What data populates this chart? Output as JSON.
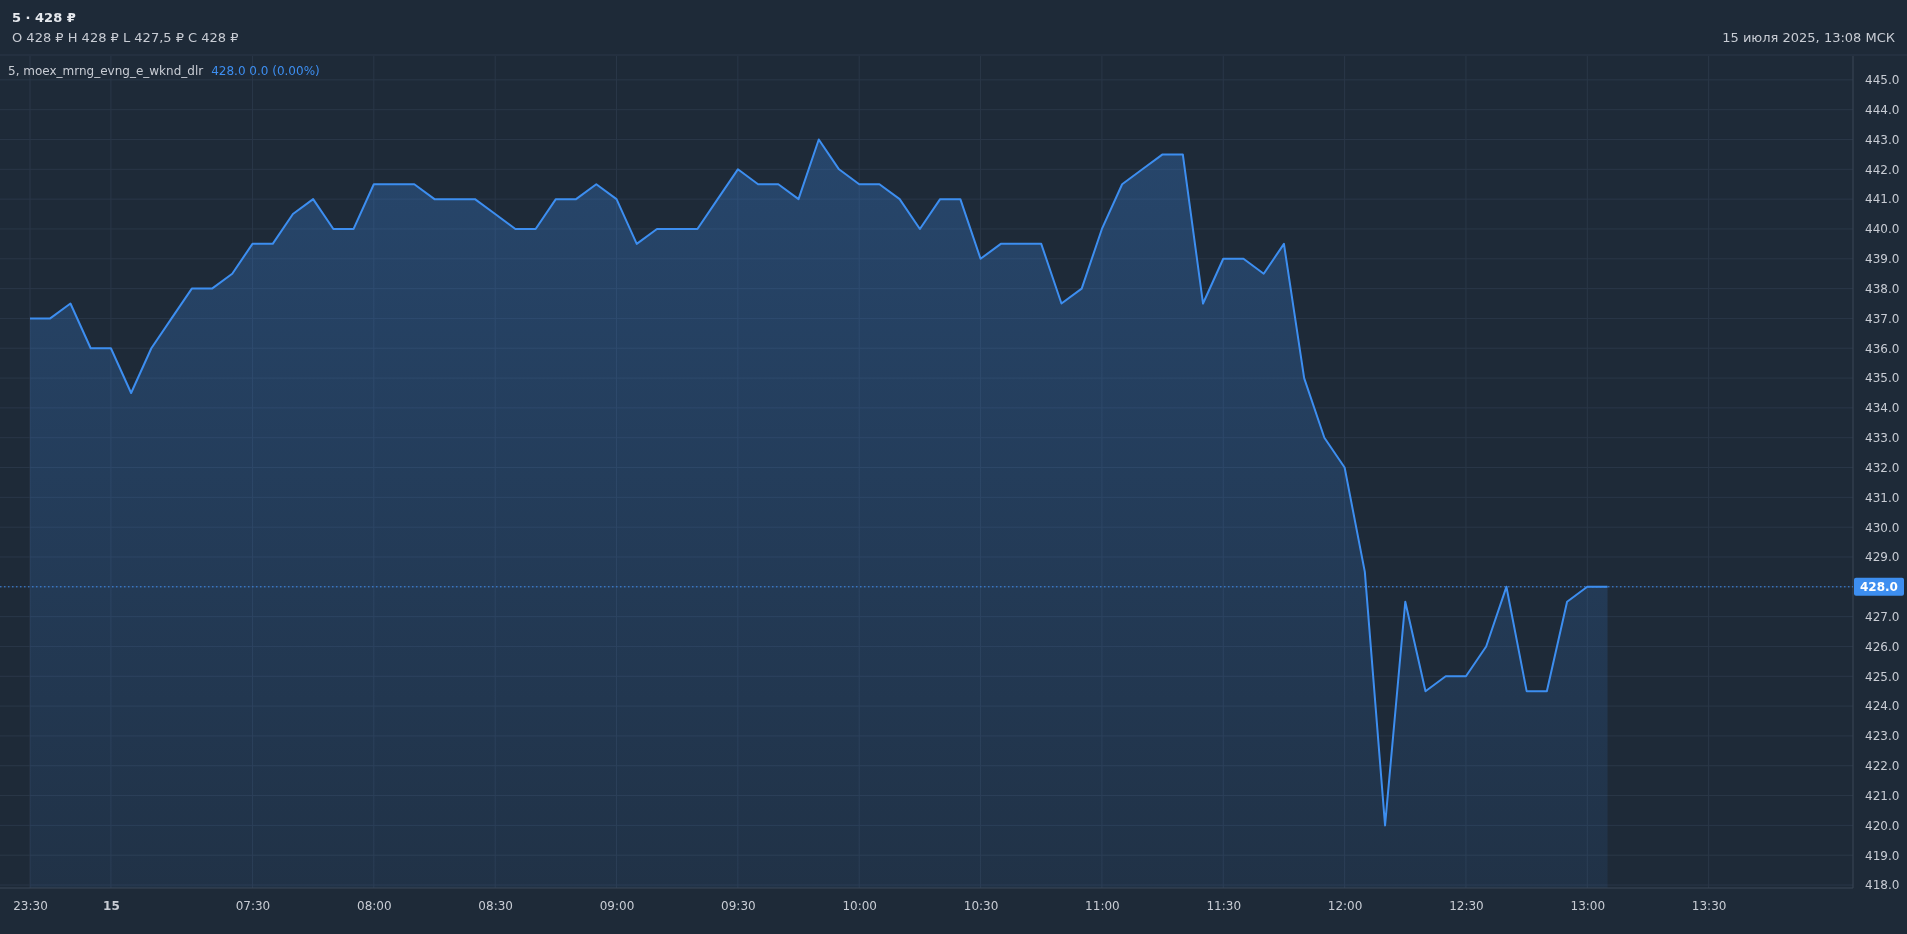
{
  "chart_data": {
    "type": "area",
    "title": "5 · 428 ₽",
    "subtitle": "O 428 ₽   H 428 ₽   L 427,5 ₽   C 428 ₽",
    "annotations": [
      "5, moex_mrng_evng_e_wknd_dlr",
      "428.0  0.0 (0.00%)",
      "15 июля 2025, 13:08 МСК"
    ],
    "categories": [
      "23:30",
      null,
      null,
      null,
      "15",
      null,
      null,
      null,
      null,
      null,
      null,
      "07:30",
      null,
      null,
      null,
      null,
      null,
      "08:00",
      null,
      null,
      null,
      null,
      null,
      "08:30",
      null,
      null,
      null,
      null,
      null,
      "09:00",
      null,
      null,
      null,
      null,
      null,
      "09:30",
      null,
      null,
      null,
      null,
      null,
      "10:00",
      null,
      null,
      null,
      null,
      null,
      "10:30",
      null,
      null,
      null,
      null,
      null,
      "11:00",
      null,
      null,
      null,
      null,
      null,
      "11:30",
      null,
      null,
      null,
      null,
      null,
      "12:00",
      null,
      null,
      null,
      null,
      null,
      "12:30",
      null,
      null,
      null,
      null,
      null,
      "13:00",
      null,
      null,
      null,
      null,
      null,
      "13:30",
      null,
      null,
      null,
      null,
      null,
      null
    ],
    "series": [
      {
        "color": "#3d8ef0",
        "values": [
          437.0,
          437.0,
          437.5,
          436.0,
          436.0,
          434.5,
          436.0,
          437.0,
          438.0,
          438.0,
          438.5,
          439.5,
          439.5,
          440.5,
          441.0,
          440.0,
          440.0,
          441.5,
          441.5,
          441.5,
          441.0,
          441.0,
          441.0,
          440.5,
          440.0,
          440.0,
          441.0,
          441.0,
          441.5,
          441.0,
          439.5,
          440.0,
          440.0,
          440.0,
          441.0,
          442.0,
          441.5,
          441.5,
          441.0,
          443.0,
          442.0,
          441.5,
          441.5,
          441.0,
          440.0,
          441.0,
          441.0,
          439.0,
          439.5,
          439.5,
          439.5,
          437.5,
          438.0,
          440.0,
          441.5,
          442.0,
          442.5,
          442.5,
          437.5,
          439.0,
          439.0,
          438.5,
          439.5,
          435.0,
          433.0,
          432.0,
          428.5,
          420.0,
          427.5,
          424.5,
          425.0,
          425.0,
          426.0,
          428.0,
          424.5,
          424.5,
          427.5,
          428.0,
          428.0,
          null,
          null,
          null,
          null,
          null,
          null,
          null,
          null,
          null,
          null,
          null
        ]
      }
    ],
    "ylim": [
      417.9,
      445.8
    ],
    "yticks": [
      {
        "value": 418,
        "label": "418.0"
      },
      {
        "value": 419,
        "label": "419.0"
      },
      {
        "value": 420,
        "label": "420.0"
      },
      {
        "value": 421,
        "label": "421.0"
      },
      {
        "value": 422,
        "label": "422.0"
      },
      {
        "value": 423,
        "label": "423.0"
      },
      {
        "value": 424,
        "label": "424.0"
      },
      {
        "value": 425,
        "label": "425.0"
      },
      {
        "value": 426,
        "label": "426.0"
      },
      {
        "value": 427,
        "label": "427.0"
      },
      {
        "value": 428,
        "label": null
      },
      {
        "value": 429,
        "label": "429.0"
      },
      {
        "value": 430,
        "label": "430.0"
      },
      {
        "value": 431,
        "label": "431.0"
      },
      {
        "value": 432,
        "label": "432.0"
      },
      {
        "value": 433,
        "label": "433.0"
      },
      {
        "value": 434,
        "label": "434.0"
      },
      {
        "value": 435,
        "label": "435.0"
      },
      {
        "value": 436,
        "label": "436.0"
      },
      {
        "value": 437,
        "label": "437.0"
      },
      {
        "value": 438,
        "label": "438.0"
      },
      {
        "value": 439,
        "label": "439.0"
      },
      {
        "value": 440,
        "label": "440.0"
      },
      {
        "value": 441,
        "label": "441.0"
      },
      {
        "value": 442,
        "label": "442.0"
      },
      {
        "value": 443,
        "label": "443.0"
      },
      {
        "value": 444,
        "label": "444.0"
      },
      {
        "value": 445,
        "label": "445.0"
      }
    ],
    "ref_lines": [
      {
        "axis": "y",
        "value": 428,
        "label": "428.0",
        "color": "#3d8ef0",
        "line_style": "dotted"
      }
    ],
    "grid": true,
    "marker": "none",
    "line_style": "solid"
  }
}
